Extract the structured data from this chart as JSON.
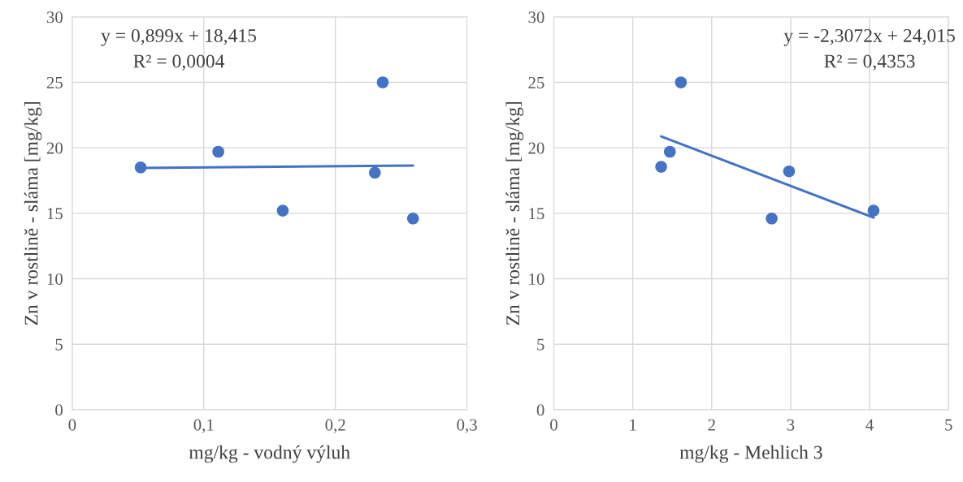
{
  "chart_data": [
    {
      "type": "scatter",
      "xlabel": "mg/kg - vodný výluh",
      "ylabel": "Zn v rostlině - sláma [mg/kg]",
      "xlim": [
        0,
        0.3
      ],
      "xticks": [
        {
          "value": 0,
          "label": "0"
        },
        {
          "value": 0.1,
          "label": "0,1"
        },
        {
          "value": 0.2,
          "label": "0,2"
        },
        {
          "value": 0.3,
          "label": "0,3"
        }
      ],
      "ylim": [
        0,
        30
      ],
      "yticks": [
        0,
        5,
        10,
        15,
        20,
        25,
        30
      ],
      "grid": true,
      "series": [
        {
          "marker": "circle",
          "color": "#4472c4",
          "x": [
            0.052,
            0.111,
            0.16,
            0.23,
            0.236,
            0.259
          ],
          "values": [
            18.5,
            19.7,
            15.2,
            18.1,
            25.0,
            14.6
          ]
        },
        {
          "type": "line",
          "color": "#4472c4",
          "x": [
            0.052,
            0.259
          ],
          "values": [
            18.46,
            18.65
          ]
        }
      ],
      "annotations": [
        "y = 0,899x + 18,415",
        "R² = 0,0004"
      ]
    },
    {
      "type": "scatter",
      "xlabel": "mg/kg - Mehlich 3",
      "ylabel": "Zn v rostlině - sláma [mg/kg]",
      "xlim": [
        0,
        5
      ],
      "xticks": [
        0,
        1,
        2,
        3,
        4,
        5
      ],
      "ylim": [
        0,
        30
      ],
      "yticks": [
        0,
        5,
        10,
        15,
        20,
        25,
        30
      ],
      "grid": true,
      "series": [
        {
          "marker": "circle",
          "color": "#4472c4",
          "x": [
            1.36,
            1.47,
            1.61,
            2.76,
            2.98,
            4.05
          ],
          "values": [
            18.55,
            19.7,
            25.0,
            14.6,
            18.2,
            15.2
          ]
        },
        {
          "type": "line",
          "color": "#4472c4",
          "x": [
            1.36,
            4.05
          ],
          "values": [
            20.87,
            14.67
          ]
        }
      ],
      "annotations": [
        "y = -2,3072x + 24,015",
        "R² = 0,4353"
      ]
    }
  ]
}
